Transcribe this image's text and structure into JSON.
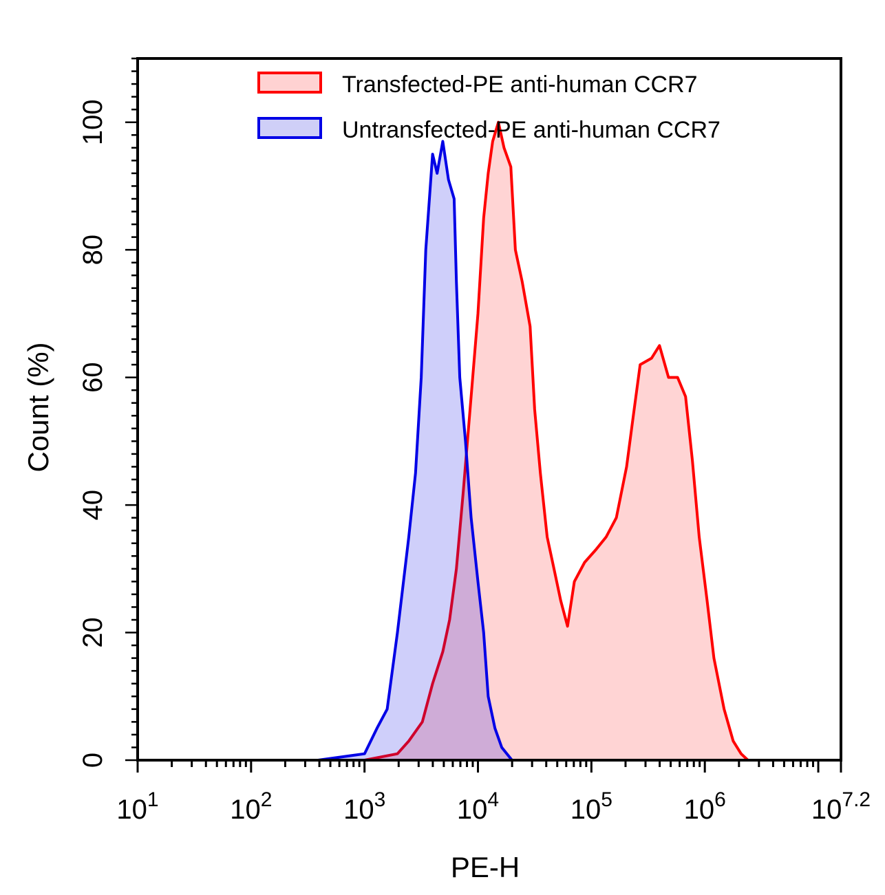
{
  "chart_data": {
    "type": "area",
    "title": "",
    "xlabel": "PE-H",
    "ylabel": "Count (%)",
    "x_scale": "log",
    "xlim": [
      10,
      15848932
    ],
    "ylim": [
      0,
      110
    ],
    "x_ticks": [
      {
        "base": "10",
        "exp": "1",
        "value": 10
      },
      {
        "base": "10",
        "exp": "2",
        "value": 100
      },
      {
        "base": "10",
        "exp": "3",
        "value": 1000
      },
      {
        "base": "10",
        "exp": "4",
        "value": 10000
      },
      {
        "base": "10",
        "exp": "5",
        "value": 100000
      },
      {
        "base": "10",
        "exp": "6",
        "value": 1000000
      },
      {
        "base": "10",
        "exp": "7.2",
        "value": 15848932
      }
    ],
    "y_ticks": [
      "0",
      "20",
      "40",
      "60",
      "80",
      "100"
    ],
    "grid": false,
    "legend_position": "top-right",
    "series": [
      {
        "name": "Transfected-PE anti-human CCR7",
        "color": "#ff0000",
        "fill": "#ffd2d2",
        "x": [
          1000,
          1950,
          2455,
          3236,
          3981,
          4898,
          5623,
          6457,
          7413,
          8710,
          10000,
          11220,
          12303,
          13490,
          15136,
          16982,
          19498,
          21380,
          24547,
          28840,
          31623,
          35481,
          40738,
          46774,
          53703,
          61660,
          70795,
          87096,
          109648,
          134896,
          165959,
          204174,
          234423,
          269153,
          338844,
          398107,
          478630,
          575440,
          676083,
          776247,
          891251,
          1047129,
          1202264,
          1479108,
          1778279,
          2089296,
          2398833
        ],
        "y": [
          0,
          1,
          3,
          6,
          12,
          17,
          22,
          30,
          42,
          57,
          70,
          85,
          92,
          97,
          100,
          96,
          93,
          80,
          75,
          68,
          55,
          45,
          35,
          30,
          25,
          21,
          28,
          31,
          33,
          35,
          38,
          46,
          54,
          62,
          63,
          65,
          60,
          60,
          57,
          47,
          35,
          25,
          16,
          8,
          3,
          1,
          0
        ]
      },
      {
        "name": "Untransfected-PE anti-human CCR7",
        "color": "#0000e6",
        "fill": "#cfcff7",
        "x": [
          389,
          1000,
          1288,
          1585,
          1950,
          2455,
          2818,
          3162,
          3467,
          3981,
          4365,
          4898,
          5495,
          6166,
          6457,
          6918,
          7762,
          8710,
          10000,
          11220,
          12303,
          14125,
          16218,
          19953
        ],
        "y": [
          0,
          1,
          5,
          8,
          20,
          35,
          45,
          60,
          80,
          95,
          92,
          97,
          91,
          88,
          75,
          60,
          50,
          38,
          28,
          20,
          10,
          5,
          2,
          0
        ]
      }
    ]
  }
}
